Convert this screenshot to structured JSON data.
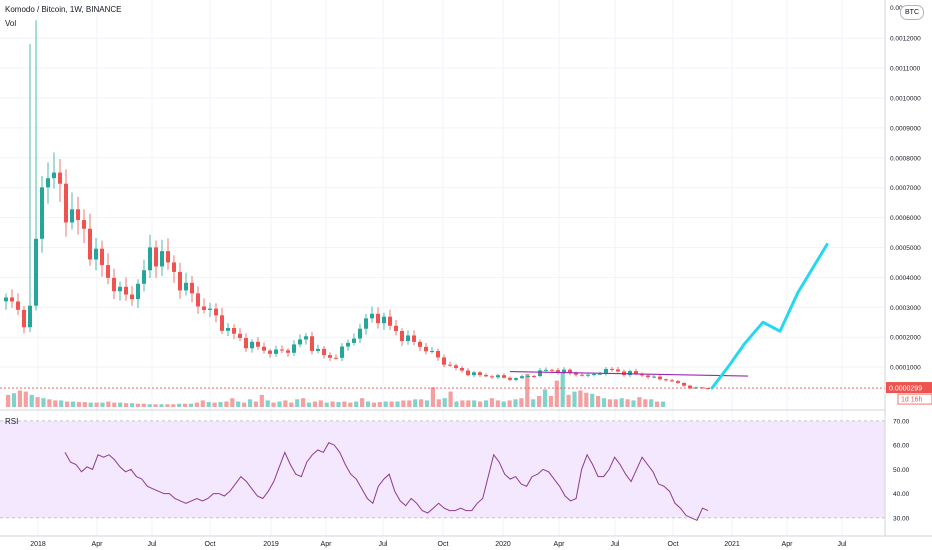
{
  "header": {
    "symbol_title": "Komodo / Bitcoin, 1W, BINANCE",
    "volume_label": "Vol",
    "rsi_label": "RSI",
    "currency_badge": "BTC"
  },
  "price_tags": {
    "last_price": "0.0000299",
    "countdown": "1d 16h",
    "top_partial": "0.0013000"
  },
  "colors": {
    "up": "#26a69a",
    "down": "#ef5350",
    "vol_up": "#7fd3ca",
    "vol_down": "#f5a0a0",
    "rsi_line": "#8e3b8e",
    "rsi_band": "#f3e8fd",
    "trendline": "#9c27b0",
    "projection": "#26d7f0",
    "price_tag": "#ef5350"
  },
  "chart_data": [
    {
      "type": "candlestick",
      "title": "Komodo / Bitcoin, 1W, BINANCE",
      "ylim": [
        0,
        0.0013
      ],
      "y_ticks": [
        "0.0012000",
        "0.0011000",
        "0.0010000",
        "0.0009000",
        "0.0008000",
        "0.0007000",
        "0.0006000",
        "0.0005000",
        "0.0004000",
        "0.0003000",
        "0.0002000",
        "0.0001000"
      ],
      "x_ticks": [
        "2018",
        "Apr",
        "Jul",
        "Oct",
        "2019",
        "Apr",
        "Jul",
        "Oct",
        "2020",
        "Apr",
        "Jul",
        "Oct",
        "2021",
        "Apr",
        "Jul"
      ],
      "close_path": [
        0.00032,
        0.00031,
        0.00025,
        0.0003,
        0.00072,
        0.00076,
        0.0007,
        0.00064,
        0.0006,
        0.00055,
        0.0005,
        0.00044,
        0.0004,
        0.00036,
        0.00033,
        0.00036,
        0.0004,
        0.0005,
        0.00047,
        0.00044,
        0.0004,
        0.00036,
        0.00033,
        0.0003,
        0.00028,
        0.00025,
        0.00022,
        0.0002,
        0.00018,
        0.00017,
        0.00016,
        0.00015,
        0.00015,
        0.00016,
        0.00018,
        0.0002,
        0.00016,
        0.00014,
        0.00013,
        0.00015,
        0.00018,
        0.00022,
        0.00025,
        0.00028,
        0.00026,
        0.00023,
        0.00021,
        0.00019,
        0.00018,
        0.00016,
        0.00014,
        0.00012,
        0.0001,
        9e-05,
        8e-05,
        7.5e-05,
        7e-05,
        7e-05,
        6.5e-05,
        6e-05,
        6.5e-05,
        7e-05,
        8e-05,
        9e-05,
        9e-05,
        8.5e-05,
        8e-05,
        7.5e-05,
        7e-05,
        8e-05,
        9e-05,
        9e-05,
        8e-05,
        8e-05,
        7.5e-05,
        7e-05,
        6e-05,
        6e-05,
        5e-05,
        4e-05,
        3e-05,
        3e-05,
        2.9e-05
      ],
      "ohlc_notes": "weekly candles reconstructed approximately; last close 0.0000299",
      "trendline": {
        "from": [
          "2020-01",
          8.5e-05
        ],
        "to": [
          "2020-12",
          7e-05
        ]
      },
      "projection": [
        {
          "x": "2020-12",
          "y": 3e-05
        },
        {
          "x": "2021-01",
          "y": 0.0001
        },
        {
          "x": "2021-02",
          "y": 0.00018
        },
        {
          "x": "2021-03",
          "y": 0.00025
        },
        {
          "x": "2021-04",
          "y": 0.00022
        },
        {
          "x": "2021-05",
          "y": 0.00035
        },
        {
          "x": "2021-06",
          "y": 0.00051
        }
      ]
    },
    {
      "type": "bar",
      "name": "Vol",
      "values": [
        22,
        25,
        30,
        28,
        22,
        18,
        16,
        14,
        12,
        12,
        10,
        10,
        9,
        9,
        8,
        8,
        8,
        10,
        8,
        8,
        7,
        7,
        6,
        6,
        5,
        5,
        5,
        5,
        5,
        6,
        6,
        6,
        8,
        12,
        9,
        8,
        9,
        10,
        16,
        10,
        8,
        14,
        10,
        22,
        12,
        8,
        10,
        12,
        8,
        14,
        16,
        8,
        10,
        12,
        8,
        10,
        9,
        10,
        8,
        10,
        16,
        10,
        8,
        9,
        10,
        10,
        10,
        12,
        12,
        14,
        14,
        12,
        36,
        14,
        16,
        28,
        10,
        12,
        12,
        12,
        10,
        12,
        16,
        12,
        10,
        12,
        14,
        16,
        60,
        14,
        20,
        32,
        20,
        48,
        62,
        22,
        28,
        30,
        26,
        24,
        20,
        16,
        14,
        14,
        16,
        14,
        12,
        18,
        14,
        14,
        10,
        10
      ]
    },
    {
      "type": "line",
      "name": "RSI",
      "ylim": [
        25,
        72
      ],
      "y_ticks": [
        "70.00",
        "60.00",
        "50.00",
        "40.00",
        "30.00"
      ],
      "band": [
        30,
        70
      ],
      "values": [
        57,
        53,
        52,
        49,
        51,
        50,
        56,
        55,
        56,
        54,
        51,
        49,
        50,
        47,
        46,
        43,
        42,
        41,
        40,
        40,
        38,
        37,
        36,
        37,
        38,
        37,
        38,
        40,
        40,
        39,
        41,
        44,
        47,
        45,
        42,
        39,
        38,
        41,
        45,
        51,
        57,
        52,
        48,
        47,
        53,
        56,
        58,
        57,
        61,
        60,
        57,
        52,
        48,
        46,
        42,
        38,
        36,
        43,
        46,
        48,
        41,
        37,
        35,
        38,
        36,
        33,
        32,
        34,
        36,
        34,
        33,
        33,
        34,
        33,
        33,
        36,
        38,
        47,
        56,
        53,
        48,
        46,
        47,
        44,
        43,
        47,
        48,
        50,
        49,
        46,
        43,
        39,
        37,
        38,
        50,
        56,
        52,
        47,
        47,
        50,
        55,
        52,
        48,
        45,
        50,
        55,
        52,
        49,
        44,
        43,
        41,
        36,
        34,
        31,
        30,
        29,
        34,
        33
      ]
    }
  ]
}
